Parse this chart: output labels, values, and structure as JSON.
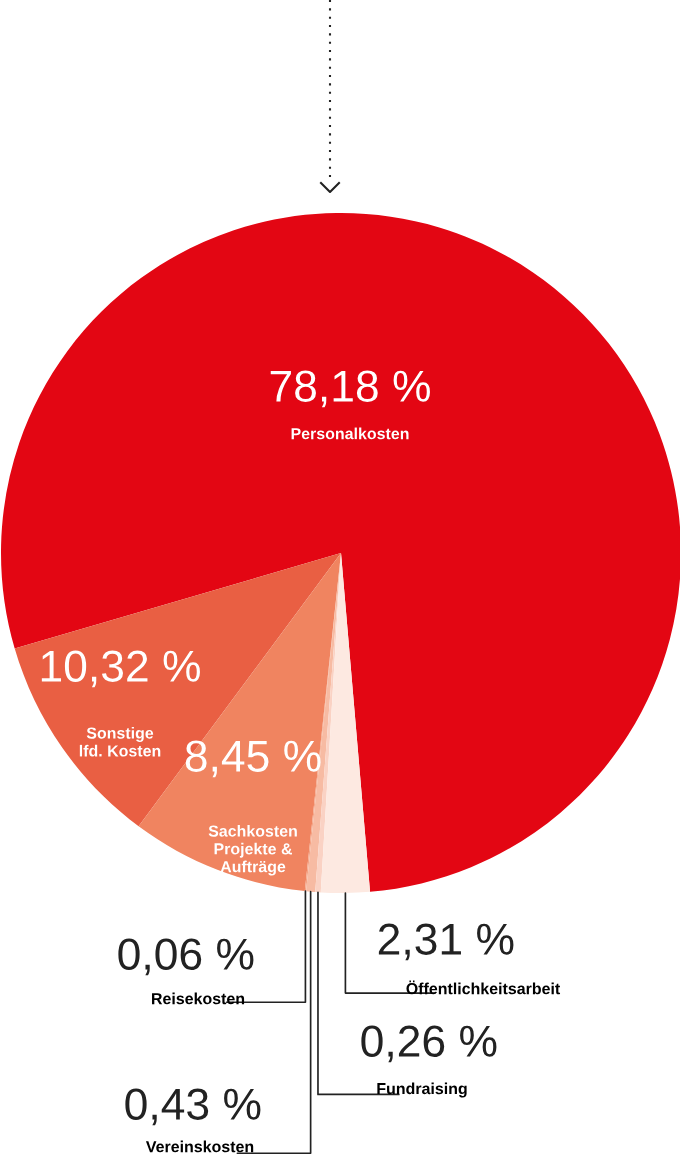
{
  "chart_data": {
    "type": "pie",
    "categories": [
      "Personalkosten",
      "Sonstige\nlfd. Kosten",
      "Sachkosten\nProjekte &\nAufträge",
      "Reisekosten",
      "Vereinskosten",
      "Fundraising",
      "Öffentlichkeitsarbeit"
    ],
    "values": [
      78.18,
      10.32,
      8.45,
      0.06,
      0.43,
      0.26,
      2.31
    ],
    "colors": [
      "#e30613",
      "#e95f43",
      "#f08460",
      "#f4a384",
      "#f7bba3",
      "#fad2c4",
      "#fde9e1"
    ],
    "value_labels": [
      "78,18 %",
      "10,32 %",
      "8,45 %",
      "0,06 %",
      "0,43 %",
      "0,26 %",
      "2,31 %"
    ]
  }
}
